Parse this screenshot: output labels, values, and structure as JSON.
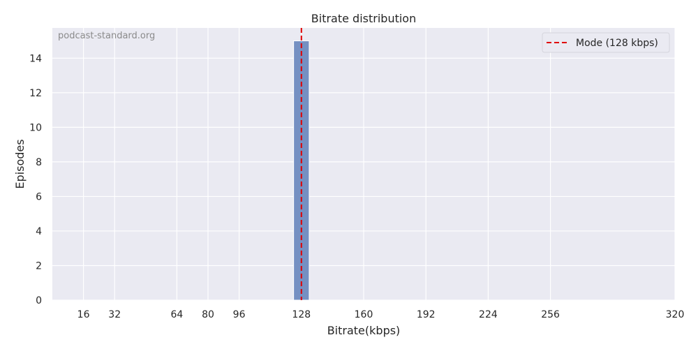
{
  "chart_data": {
    "type": "bar",
    "title": "Bitrate distribution",
    "xlabel": "Bitrate(kbps)",
    "ylabel": "Episodes",
    "watermark": "podcast-standard.org",
    "xlim": [
      0,
      320
    ],
    "ylim": [
      0,
      15.75
    ],
    "xticks": [
      16,
      32,
      64,
      80,
      96,
      128,
      160,
      192,
      224,
      256,
      320
    ],
    "yticks": [
      0,
      2,
      4,
      6,
      8,
      10,
      12,
      14
    ],
    "bins": [
      {
        "x0": 124,
        "x1": 132,
        "value": 15
      }
    ],
    "mode_line": {
      "x": 128,
      "label": "Mode (128 kbps)",
      "color": "#e00000"
    },
    "bar_color": "#7590c2",
    "background": "#eaeaf2",
    "grid": true,
    "legend_position": "top-right"
  }
}
